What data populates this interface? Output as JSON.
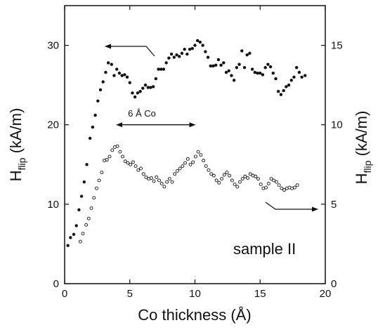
{
  "chart_data": {
    "type": "scatter",
    "xlabel": "Co thickness (Å)",
    "ylabel_left": {
      "main": "H",
      "sub": "flip",
      "unit": " (kA/m)"
    },
    "ylabel_right": {
      "main": "H",
      "sub": "flip",
      "unit": " (kA/m)"
    },
    "xlim": [
      0,
      20
    ],
    "ylim_left": [
      0,
      35
    ],
    "ylim_right": [
      0,
      17.5
    ],
    "xticks": [
      0,
      5,
      10,
      15,
      20
    ],
    "yticks_left": [
      0,
      10,
      20,
      30
    ],
    "yticks_right": [
      0,
      5,
      10,
      15
    ],
    "grid": false,
    "annotations": {
      "period": "6 Å Co",
      "sample": "sample II"
    },
    "period_arrow": {
      "x_start": 4.0,
      "x_end": 10.0,
      "y_left": 20.0
    },
    "series": [
      {
        "axis": "left",
        "marker": "filled",
        "points": [
          [
            0.25,
            4.8
          ],
          [
            0.45,
            5.8
          ],
          [
            0.7,
            6.2
          ],
          [
            0.9,
            7.3
          ],
          [
            1.1,
            9.3
          ],
          [
            1.3,
            11.0
          ],
          [
            1.5,
            12.8
          ],
          [
            1.7,
            15.0
          ],
          [
            1.95,
            18.3
          ],
          [
            2.15,
            19.7
          ],
          [
            2.35,
            21.2
          ],
          [
            2.55,
            23.0
          ],
          [
            2.75,
            24.4
          ],
          [
            2.95,
            25.4
          ],
          [
            3.15,
            26.6
          ],
          [
            3.35,
            27.8
          ],
          [
            3.6,
            27.6
          ],
          [
            3.8,
            26.2
          ],
          [
            4.0,
            27.0
          ],
          [
            4.2,
            26.5
          ],
          [
            4.4,
            26.2
          ],
          [
            4.6,
            26.3
          ],
          [
            4.8,
            26.0
          ],
          [
            5.0,
            25.3
          ],
          [
            5.2,
            24.0
          ],
          [
            5.4,
            23.5
          ],
          [
            5.6,
            24.0
          ],
          [
            5.8,
            24.2
          ],
          [
            6.0,
            24.6
          ],
          [
            6.2,
            25.0
          ],
          [
            6.4,
            24.7
          ],
          [
            6.6,
            24.7
          ],
          [
            6.8,
            24.8
          ],
          [
            7.0,
            25.8
          ],
          [
            7.2,
            27.0
          ],
          [
            7.4,
            27.0
          ],
          [
            7.6,
            27.0
          ],
          [
            7.8,
            27.8
          ],
          [
            8.0,
            28.4
          ],
          [
            8.2,
            28.9
          ],
          [
            8.4,
            28.5
          ],
          [
            8.6,
            28.8
          ],
          [
            8.8,
            28.6
          ],
          [
            9.0,
            29.0
          ],
          [
            9.2,
            29.5
          ],
          [
            9.4,
            28.9
          ],
          [
            9.6,
            29.5
          ],
          [
            9.8,
            29.6
          ],
          [
            10.0,
            30.0
          ],
          [
            10.2,
            30.6
          ],
          [
            10.4,
            30.4
          ],
          [
            10.6,
            30.0
          ],
          [
            10.8,
            29.2
          ],
          [
            11.0,
            28.5
          ],
          [
            11.2,
            27.4
          ],
          [
            11.4,
            27.4
          ],
          [
            11.6,
            27.5
          ],
          [
            11.8,
            28.2
          ],
          [
            12.0,
            27.5
          ],
          [
            12.2,
            27.8
          ],
          [
            12.4,
            26.6
          ],
          [
            12.6,
            26.8
          ],
          [
            12.8,
            26.2
          ],
          [
            13.0,
            25.6
          ],
          [
            13.2,
            27.2
          ],
          [
            13.4,
            27.6
          ],
          [
            13.6,
            29.3
          ],
          [
            13.8,
            27.2
          ],
          [
            14.0,
            28.8
          ],
          [
            14.2,
            29.0
          ],
          [
            14.4,
            27.0
          ],
          [
            14.6,
            26.6
          ],
          [
            14.8,
            26.5
          ],
          [
            15.0,
            26.5
          ],
          [
            15.2,
            26.3
          ],
          [
            15.4,
            27.2
          ],
          [
            15.6,
            27.6
          ],
          [
            15.8,
            27.3
          ],
          [
            16.0,
            26.5
          ],
          [
            16.2,
            25.8
          ],
          [
            16.4,
            24.2
          ],
          [
            16.6,
            23.8
          ],
          [
            16.8,
            24.3
          ],
          [
            17.0,
            24.8
          ],
          [
            17.2,
            25.0
          ],
          [
            17.4,
            25.6
          ],
          [
            17.6,
            26.0
          ],
          [
            17.8,
            27.2
          ],
          [
            18.0,
            26.6
          ],
          [
            18.2,
            26.0
          ],
          [
            18.45,
            26.2
          ]
        ]
      },
      {
        "axis": "left",
        "marker": "open",
        "points": [
          [
            1.2,
            5.3
          ],
          [
            1.4,
            6.3
          ],
          [
            1.65,
            7.4
          ],
          [
            1.85,
            8.2
          ],
          [
            2.05,
            9.5
          ],
          [
            2.25,
            10.8
          ],
          [
            2.45,
            12.0
          ],
          [
            2.65,
            13.0
          ],
          [
            2.85,
            14.0
          ],
          [
            3.05,
            15.5
          ],
          [
            3.25,
            15.6
          ],
          [
            3.45,
            16.0
          ],
          [
            3.65,
            16.8
          ],
          [
            3.85,
            17.2
          ],
          [
            4.05,
            17.3
          ],
          [
            4.25,
            16.6
          ],
          [
            4.45,
            16.0
          ],
          [
            4.65,
            15.4
          ],
          [
            4.85,
            15.2
          ],
          [
            5.05,
            15.0
          ],
          [
            5.25,
            15.3
          ],
          [
            5.45,
            14.8
          ],
          [
            5.65,
            14.3
          ],
          [
            5.85,
            14.5
          ],
          [
            6.05,
            13.8
          ],
          [
            6.25,
            13.4
          ],
          [
            6.45,
            13.2
          ],
          [
            6.65,
            13.3
          ],
          [
            6.85,
            12.9
          ],
          [
            7.05,
            13.4
          ],
          [
            7.25,
            13.0
          ],
          [
            7.45,
            12.6
          ],
          [
            7.65,
            12.2
          ],
          [
            7.85,
            12.8
          ],
          [
            8.05,
            13.2
          ],
          [
            8.25,
            12.8
          ],
          [
            8.45,
            13.8
          ],
          [
            8.65,
            14.2
          ],
          [
            8.85,
            14.5
          ],
          [
            9.05,
            14.8
          ],
          [
            9.25,
            15.2
          ],
          [
            9.45,
            15.7
          ],
          [
            9.65,
            15.0
          ],
          [
            9.85,
            15.3
          ],
          [
            10.05,
            16.0
          ],
          [
            10.25,
            16.6
          ],
          [
            10.45,
            16.2
          ],
          [
            10.65,
            15.5
          ],
          [
            10.85,
            14.8
          ],
          [
            11.05,
            14.3
          ],
          [
            11.25,
            13.8
          ],
          [
            11.45,
            13.6
          ],
          [
            11.65,
            13.0
          ],
          [
            11.85,
            12.7
          ],
          [
            12.05,
            13.2
          ],
          [
            12.25,
            13.7
          ],
          [
            12.45,
            14.0
          ],
          [
            12.65,
            13.6
          ],
          [
            12.85,
            13.0
          ],
          [
            13.05,
            12.5
          ],
          [
            13.25,
            12.2
          ],
          [
            13.45,
            12.8
          ],
          [
            13.65,
            13.2
          ],
          [
            13.85,
            13.5
          ],
          [
            14.05,
            13.3
          ],
          [
            14.25,
            13.8
          ],
          [
            14.45,
            13.6
          ],
          [
            14.65,
            13.5
          ],
          [
            14.85,
            13.2
          ],
          [
            15.05,
            12.5
          ],
          [
            15.25,
            12.0
          ],
          [
            15.45,
            12.1
          ],
          [
            15.65,
            12.6
          ],
          [
            15.85,
            13.2
          ],
          [
            16.05,
            13.0
          ],
          [
            16.25,
            12.8
          ],
          [
            16.45,
            12.4
          ],
          [
            16.65,
            12.0
          ],
          [
            16.85,
            11.8
          ],
          [
            17.05,
            12.0
          ],
          [
            17.25,
            12.1
          ],
          [
            17.45,
            12.0
          ],
          [
            17.65,
            12.1
          ],
          [
            17.85,
            12.4
          ]
        ]
      }
    ]
  }
}
